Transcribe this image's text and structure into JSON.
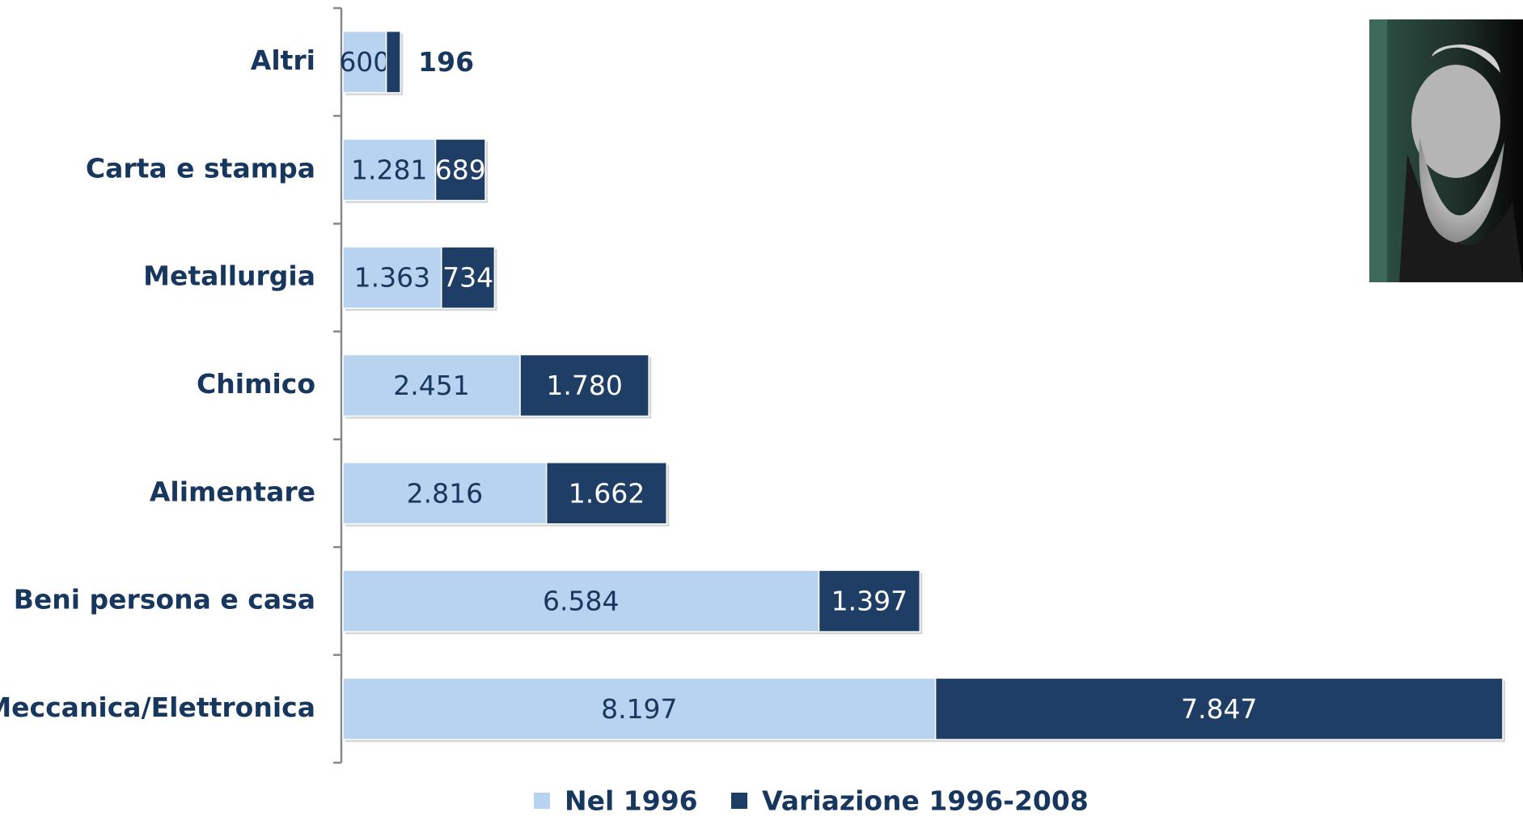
{
  "chart_data": {
    "type": "stacked-barh",
    "categories": [
      "Altri",
      "Carta e stampa",
      "Metallurgia",
      "Chimico",
      "Alimentare",
      "Beni persona e casa",
      "Meccanica/Elettronica"
    ],
    "series": [
      {
        "name": "Nel 1996",
        "color": "#b8d3f0",
        "values": [
          600,
          1281,
          1363,
          2451,
          2816,
          6584,
          8197
        ],
        "value_labels": [
          "600",
          "1.281",
          "1.363",
          "2.451",
          "2.816",
          "6.584",
          "8.197"
        ]
      },
      {
        "name": "Variazione 1996-2008",
        "color": "#1f3e66",
        "values": [
          196,
          689,
          734,
          1780,
          1662,
          1397,
          7847
        ],
        "value_labels": [
          "196",
          "689",
          "734",
          "1.780",
          "1.662",
          "1.397",
          "7.847"
        ]
      }
    ],
    "legend": "bottom"
  }
}
